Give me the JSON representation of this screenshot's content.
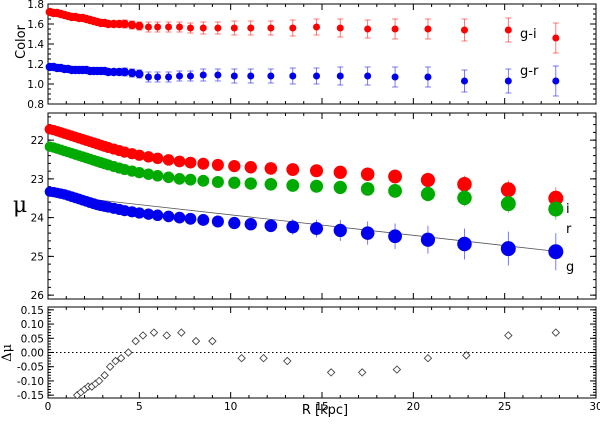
{
  "chart_data": [
    {
      "panel": "color",
      "type": "scatter",
      "ylabel": "Color",
      "xlim": [
        0,
        30
      ],
      "ylim": [
        0.8,
        1.8
      ],
      "yticks": [
        0.8,
        1.0,
        1.2,
        1.4,
        1.6,
        1.8
      ],
      "ytick_labels": [
        "0.8",
        "1.0",
        "1.2",
        "1.4",
        "1.6",
        "1.8"
      ],
      "series": [
        {
          "name": "g-i",
          "color": "#ff0000",
          "x": [
            0.1,
            0.3,
            0.5,
            0.7,
            0.9,
            1.1,
            1.3,
            1.5,
            1.7,
            1.9,
            2.1,
            2.3,
            2.5,
            2.7,
            2.9,
            3.1,
            3.3,
            3.6,
            3.9,
            4.2,
            4.6,
            5.0,
            5.5,
            6.0,
            6.6,
            7.2,
            7.8,
            8.5,
            9.3,
            10.2,
            11.1,
            12.2,
            13.4,
            14.7,
            16.0,
            17.5,
            19.0,
            20.8,
            22.8,
            25.2,
            27.8
          ],
          "y": [
            1.72,
            1.71,
            1.71,
            1.7,
            1.69,
            1.68,
            1.67,
            1.67,
            1.66,
            1.66,
            1.65,
            1.64,
            1.63,
            1.62,
            1.61,
            1.61,
            1.6,
            1.6,
            1.6,
            1.6,
            1.59,
            1.58,
            1.57,
            1.57,
            1.57,
            1.57,
            1.56,
            1.56,
            1.56,
            1.56,
            1.56,
            1.56,
            1.56,
            1.57,
            1.56,
            1.55,
            1.55,
            1.55,
            1.54,
            1.54,
            1.46
          ],
          "err": [
            0.02,
            0.02,
            0.02,
            0.02,
            0.02,
            0.02,
            0.02,
            0.02,
            0.02,
            0.02,
            0.02,
            0.02,
            0.02,
            0.02,
            0.02,
            0.03,
            0.03,
            0.03,
            0.03,
            0.04,
            0.04,
            0.04,
            0.05,
            0.05,
            0.05,
            0.05,
            0.05,
            0.06,
            0.06,
            0.07,
            0.07,
            0.07,
            0.08,
            0.08,
            0.09,
            0.09,
            0.1,
            0.1,
            0.11,
            0.12,
            0.15
          ]
        },
        {
          "name": "g-r",
          "color": "#0000ee",
          "x": [
            0.1,
            0.3,
            0.5,
            0.7,
            0.9,
            1.1,
            1.3,
            1.5,
            1.7,
            1.9,
            2.1,
            2.3,
            2.5,
            2.7,
            2.9,
            3.1,
            3.3,
            3.6,
            3.9,
            4.2,
            4.6,
            5.0,
            5.5,
            6.0,
            6.6,
            7.2,
            7.8,
            8.5,
            9.3,
            10.2,
            11.1,
            12.2,
            13.4,
            14.7,
            16.0,
            17.5,
            19.0,
            20.8,
            22.8,
            25.2,
            27.8
          ],
          "y": [
            1.17,
            1.17,
            1.16,
            1.16,
            1.15,
            1.15,
            1.14,
            1.14,
            1.14,
            1.14,
            1.14,
            1.13,
            1.13,
            1.13,
            1.13,
            1.13,
            1.12,
            1.12,
            1.12,
            1.12,
            1.11,
            1.1,
            1.07,
            1.07,
            1.07,
            1.08,
            1.08,
            1.09,
            1.09,
            1.08,
            1.08,
            1.08,
            1.08,
            1.08,
            1.08,
            1.08,
            1.07,
            1.07,
            1.03,
            1.03,
            1.03
          ],
          "err": [
            0.02,
            0.02,
            0.02,
            0.02,
            0.02,
            0.02,
            0.02,
            0.02,
            0.02,
            0.02,
            0.02,
            0.02,
            0.02,
            0.02,
            0.02,
            0.03,
            0.03,
            0.03,
            0.03,
            0.04,
            0.04,
            0.04,
            0.05,
            0.05,
            0.05,
            0.05,
            0.05,
            0.06,
            0.06,
            0.07,
            0.07,
            0.07,
            0.08,
            0.08,
            0.09,
            0.09,
            0.1,
            0.1,
            0.11,
            0.12,
            0.15
          ]
        }
      ]
    },
    {
      "panel": "mu",
      "type": "scatter",
      "ylabel": "μ",
      "xlim": [
        0,
        30
      ],
      "ylim": [
        21.3,
        26.1
      ],
      "y_inverted": true,
      "yticks": [
        22,
        23,
        24,
        25,
        26
      ],
      "ytick_labels": [
        "22",
        "23",
        "24",
        "25",
        "26"
      ],
      "series": [
        {
          "name": "i",
          "color": "#ff0000",
          "x": [
            0.1,
            0.3,
            0.5,
            0.7,
            0.9,
            1.1,
            1.3,
            1.5,
            1.7,
            1.9,
            2.1,
            2.3,
            2.5,
            2.7,
            2.9,
            3.1,
            3.3,
            3.6,
            3.9,
            4.2,
            4.6,
            5.0,
            5.5,
            6.0,
            6.6,
            7.2,
            7.8,
            8.5,
            9.3,
            10.2,
            11.1,
            12.2,
            13.4,
            14.7,
            16.0,
            17.5,
            19.0,
            20.8,
            22.8,
            25.2,
            27.8
          ],
          "y": [
            21.72,
            21.74,
            21.77,
            21.8,
            21.83,
            21.86,
            21.89,
            21.92,
            21.95,
            21.98,
            22.01,
            22.04,
            22.07,
            22.1,
            22.13,
            22.16,
            22.19,
            22.23,
            22.27,
            22.31,
            22.35,
            22.39,
            22.43,
            22.47,
            22.51,
            22.55,
            22.58,
            22.61,
            22.64,
            22.67,
            22.7,
            22.73,
            22.76,
            22.79,
            22.83,
            22.88,
            22.94,
            23.03,
            23.14,
            23.28,
            23.5
          ],
          "err": [
            0.01,
            0.01,
            0.01,
            0.01,
            0.01,
            0.01,
            0.01,
            0.01,
            0.01,
            0.01,
            0.01,
            0.01,
            0.01,
            0.01,
            0.02,
            0.02,
            0.02,
            0.02,
            0.02,
            0.02,
            0.03,
            0.03,
            0.03,
            0.03,
            0.04,
            0.04,
            0.05,
            0.05,
            0.06,
            0.07,
            0.08,
            0.09,
            0.1,
            0.12,
            0.14,
            0.16,
            0.18,
            0.2,
            0.22,
            0.24,
            0.28
          ]
        },
        {
          "name": "r",
          "color": "#00aa00",
          "x": [
            0.1,
            0.3,
            0.5,
            0.7,
            0.9,
            1.1,
            1.3,
            1.5,
            1.7,
            1.9,
            2.1,
            2.3,
            2.5,
            2.7,
            2.9,
            3.1,
            3.3,
            3.6,
            3.9,
            4.2,
            4.6,
            5.0,
            5.5,
            6.0,
            6.6,
            7.2,
            7.8,
            8.5,
            9.3,
            10.2,
            11.1,
            12.2,
            13.4,
            14.7,
            16.0,
            17.5,
            19.0,
            20.8,
            22.8,
            25.2,
            27.8
          ],
          "y": [
            22.17,
            22.19,
            22.22,
            22.25,
            22.28,
            22.31,
            22.34,
            22.37,
            22.4,
            22.43,
            22.46,
            22.49,
            22.52,
            22.55,
            22.58,
            22.61,
            22.64,
            22.68,
            22.72,
            22.76,
            22.8,
            22.84,
            22.88,
            22.92,
            22.96,
            23.0,
            23.02,
            23.05,
            23.08,
            23.1,
            23.12,
            23.14,
            23.17,
            23.19,
            23.22,
            23.26,
            23.31,
            23.39,
            23.49,
            23.64,
            23.78
          ],
          "err": [
            0.01,
            0.01,
            0.01,
            0.01,
            0.01,
            0.01,
            0.01,
            0.01,
            0.01,
            0.01,
            0.01,
            0.01,
            0.01,
            0.01,
            0.02,
            0.02,
            0.02,
            0.02,
            0.02,
            0.02,
            0.03,
            0.03,
            0.03,
            0.03,
            0.04,
            0.04,
            0.05,
            0.05,
            0.06,
            0.07,
            0.08,
            0.09,
            0.1,
            0.12,
            0.14,
            0.16,
            0.18,
            0.2,
            0.22,
            0.24,
            0.28
          ]
        },
        {
          "name": "g",
          "color": "#0000ee",
          "x": [
            0.1,
            0.3,
            0.5,
            0.7,
            0.9,
            1.1,
            1.3,
            1.5,
            1.7,
            1.9,
            2.1,
            2.3,
            2.5,
            2.7,
            2.9,
            3.1,
            3.3,
            3.6,
            3.9,
            4.2,
            4.6,
            5.0,
            5.5,
            6.0,
            6.6,
            7.2,
            7.8,
            8.5,
            9.3,
            10.2,
            11.1,
            12.2,
            13.4,
            14.7,
            16.0,
            17.5,
            19.0,
            20.8,
            22.8,
            25.2,
            27.8
          ],
          "y": [
            23.33,
            23.34,
            23.36,
            23.38,
            23.4,
            23.43,
            23.46,
            23.49,
            23.52,
            23.55,
            23.58,
            23.61,
            23.64,
            23.67,
            23.69,
            23.71,
            23.73,
            23.76,
            23.79,
            23.82,
            23.85,
            23.88,
            23.91,
            23.94,
            23.97,
            24.0,
            24.03,
            24.06,
            24.1,
            24.14,
            24.17,
            24.21,
            24.24,
            24.28,
            24.33,
            24.4,
            24.48,
            24.57,
            24.68,
            24.8,
            24.88
          ],
          "err": [
            0.01,
            0.01,
            0.01,
            0.01,
            0.01,
            0.01,
            0.01,
            0.01,
            0.01,
            0.01,
            0.01,
            0.01,
            0.01,
            0.01,
            0.02,
            0.02,
            0.02,
            0.02,
            0.02,
            0.02,
            0.03,
            0.03,
            0.03,
            0.04,
            0.05,
            0.06,
            0.07,
            0.08,
            0.1,
            0.12,
            0.14,
            0.17,
            0.2,
            0.23,
            0.27,
            0.3,
            0.33,
            0.36,
            0.4,
            0.44,
            0.48
          ]
        }
      ],
      "fit_line": {
        "x": [
          0,
          28
        ],
        "y": [
          23.4,
          24.88
        ]
      }
    },
    {
      "panel": "residual",
      "type": "scatter",
      "ylabel": "Δμ",
      "xlabel": "R [kpc]",
      "xlim": [
        0,
        30
      ],
      "ylim": [
        -0.16,
        0.16
      ],
      "xticks": [
        0,
        5,
        10,
        15,
        20,
        25,
        30
      ],
      "xtick_labels": [
        "0",
        "5",
        "10",
        "15",
        "20",
        "25",
        "30"
      ],
      "yticks": [
        -0.15,
        -0.1,
        -0.05,
        0.0,
        0.05,
        0.1,
        0.15
      ],
      "ytick_labels": [
        "-0.15",
        "-0.10",
        "-0.05",
        "0.00",
        "0.05",
        "0.10",
        "0.15"
      ],
      "zero_line": 0.0,
      "series": [
        {
          "name": "residual",
          "color": "#444444",
          "x": [
            1.6,
            1.8,
            2.0,
            2.2,
            2.4,
            2.6,
            2.8,
            3.1,
            3.4,
            3.7,
            4.0,
            4.4,
            4.8,
            5.2,
            5.8,
            6.5,
            7.3,
            8.1,
            9.0,
            10.6,
            11.8,
            13.1,
            15.5,
            17.2,
            19.1,
            20.8,
            22.9,
            25.2,
            27.8
          ],
          "y": [
            -0.15,
            -0.14,
            -0.13,
            -0.12,
            -0.12,
            -0.11,
            -0.1,
            -0.08,
            -0.05,
            -0.03,
            -0.02,
            0.0,
            0.04,
            0.06,
            0.07,
            0.06,
            0.07,
            0.04,
            0.04,
            -0.02,
            -0.02,
            -0.03,
            -0.07,
            -0.07,
            -0.06,
            -0.02,
            -0.01,
            0.06,
            0.07
          ]
        }
      ]
    }
  ]
}
